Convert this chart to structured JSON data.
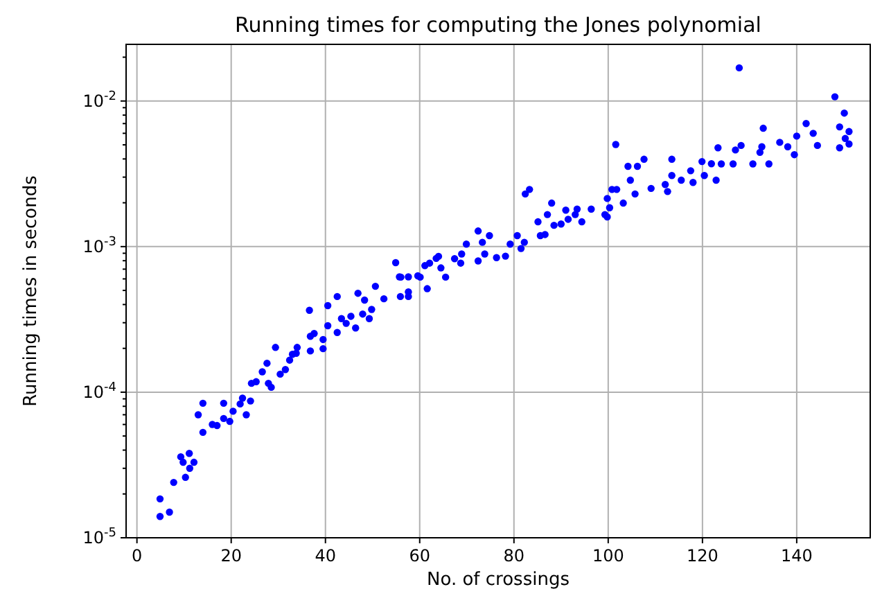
{
  "chart_data": {
    "type": "scatter",
    "title": "Running times for computing the Jones polynomial",
    "xlabel": "No. of crossings",
    "ylabel": "Running times in seconds",
    "log": "y",
    "grid": true,
    "marker": "circle",
    "xlim": [
      -2.3,
      155.6
    ],
    "xticks": [
      0,
      20,
      40,
      60,
      80,
      100,
      120,
      140
    ],
    "ylim": [
      1e-05,
      0.0245
    ],
    "yticks": [
      {
        "value": 1e-05,
        "label": "10$^{-5}$"
      },
      {
        "value": 0.0001,
        "label": "10$^{-4}$"
      },
      {
        "value": 0.001,
        "label": "10$^{-3}$"
      },
      {
        "value": 0.01,
        "label": "10$^{-2}$"
      }
    ],
    "series": [
      {
        "color": "#0000ff",
        "x": [
          4.9,
          4.9,
          6.9,
          7.8,
          9.3,
          11.1,
          10.3,
          11.2,
          12.1,
          9.8,
          14.0,
          13.0,
          14.0,
          16.0,
          17.0,
          18.4,
          18.4,
          19.7,
          20.4,
          21.9,
          22.4,
          23.2,
          24.1,
          24.3,
          25.3,
          26.6,
          27.6,
          27.9,
          28.5,
          29.4,
          30.4,
          31.5,
          32.4,
          33.0,
          34.0,
          33.8,
          36.6,
          36.8,
          36.8,
          37.6,
          39.5,
          39.5,
          40.5,
          40.5,
          42.5,
          42.5,
          43.4,
          44.4,
          45.4,
          46.9,
          46.4,
          47.9,
          48.3,
          49.3,
          50.6,
          49.8,
          52.4,
          55.9,
          57.6,
          57.6,
          56.0,
          60.1,
          54.9,
          55.7,
          57.6,
          61.6,
          61.1,
          63.5,
          59.6,
          62.1,
          64.5,
          64.0,
          65.5,
          67.4,
          68.9,
          68.7,
          69.9,
          72.4,
          72.4,
          73.3,
          74.8,
          73.8,
          76.3,
          78.2,
          79.2,
          80.7,
          81.5,
          82.4,
          83.3,
          82.2,
          85.1,
          85.6,
          86.6,
          87.1,
          88.0,
          88.5,
          90.0,
          91.0,
          91.5,
          93.0,
          93.4,
          94.4,
          96.4,
          99.3,
          99.8,
          100.8,
          101.6,
          100.3,
          99.8,
          101.8,
          103.2,
          104.2,
          104.7,
          106.2,
          105.7,
          107.6,
          109.1,
          112.1,
          113.5,
          113.5,
          112.6,
          115.5,
          117.5,
          118.0,
          119.9,
          120.4,
          121.9,
          122.9,
          123.3,
          124.0,
          126.5,
          127.0,
          127.8,
          128.2,
          130.7,
          132.2,
          132.9,
          132.6,
          134.1,
          136.4,
          138.1,
          139.5,
          140.0,
          142.0,
          143.5,
          144.4,
          148.1,
          150.1,
          149.1,
          151.1,
          149.1,
          151.1,
          150.3
        ],
        "values": [
          1.85e-05,
          1.4e-05,
          1.5e-05,
          2.4e-05,
          3.6e-05,
          3.8e-05,
          2.6e-05,
          3e-05,
          3.3e-05,
          3.3e-05,
          8.4e-05,
          7e-05,
          5.3e-05,
          6e-05,
          5.9e-05,
          8.4e-05,
          6.6e-05,
          6.3e-05,
          7.4e-05,
          8.3e-05,
          9.1e-05,
          7e-05,
          8.7e-05,
          0.000115,
          0.000118,
          0.000138,
          0.000158,
          0.000115,
          0.000108,
          0.000203,
          0.000133,
          0.000143,
          0.000166,
          0.000182,
          0.000203,
          0.000185,
          0.000365,
          0.000242,
          0.000192,
          0.000253,
          0.000199,
          0.00023,
          0.000393,
          0.000286,
          0.000454,
          0.000257,
          0.00032,
          0.000297,
          0.000332,
          0.000478,
          0.000276,
          0.000344,
          0.000429,
          0.00032,
          0.000534,
          0.00037,
          0.000438,
          0.000454,
          0.000488,
          0.000454,
          0.000617,
          0.000617,
          0.000776,
          0.00062,
          0.00062,
          0.000514,
          0.00074,
          0.00083,
          0.00063,
          0.00077,
          0.000714,
          0.000857,
          0.000617,
          0.000826,
          0.00089,
          0.00077,
          0.00104,
          0.00128,
          0.000797,
          0.00107,
          0.00119,
          0.00089,
          0.00084,
          0.00086,
          0.00104,
          0.00119,
          0.00097,
          0.0023,
          0.00247,
          0.00107,
          0.00148,
          0.00119,
          0.00121,
          0.00166,
          0.00199,
          0.0014,
          0.00143,
          0.00178,
          0.00154,
          0.00166,
          0.00181,
          0.00148,
          0.00181,
          0.00166,
          0.00214,
          0.00247,
          0.00503,
          0.00185,
          0.0016,
          0.00247,
          0.00199,
          0.00356,
          0.00286,
          0.00356,
          0.0023,
          0.00398,
          0.00251,
          0.00267,
          0.00398,
          0.00308,
          0.00239,
          0.00286,
          0.00332,
          0.00276,
          0.00384,
          0.00308,
          0.00371,
          0.00286,
          0.00477,
          0.0037,
          0.0037,
          0.00461,
          0.0169,
          0.00495,
          0.0037,
          0.00444,
          0.0065,
          0.00485,
          0.0037,
          0.0052,
          0.00485,
          0.00428,
          0.00574,
          0.007,
          0.006,
          0.00495,
          0.0107,
          0.00826,
          0.00664,
          0.00617,
          0.00477,
          0.00507,
          0.00553
        ]
      }
    ]
  }
}
